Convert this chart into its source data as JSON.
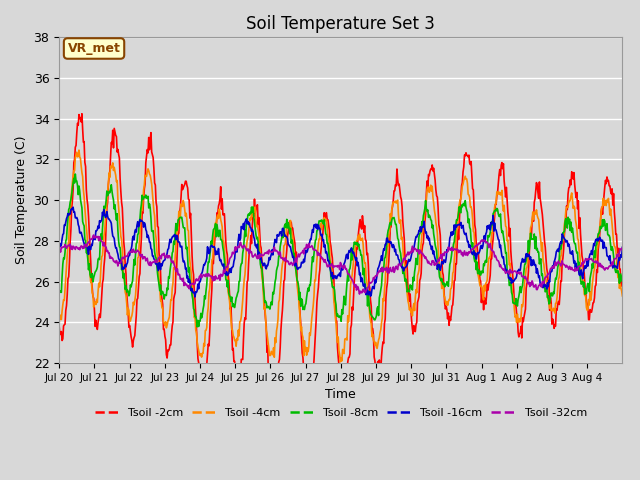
{
  "title": "Soil Temperature Set 3",
  "xlabel": "Time",
  "ylabel": "Soil Temperature (C)",
  "ylim": [
    22,
    38
  ],
  "yticks": [
    22,
    24,
    26,
    28,
    30,
    32,
    34,
    36,
    38
  ],
  "background_color": "#d8d8d8",
  "plot_bg_color": "#d8d8d8",
  "grid_color": "#ffffff",
  "annotation_text": "VR_met",
  "annotation_fg": "#884400",
  "annotation_bg": "#ffffcc",
  "annotation_edge": "#884400",
  "series": [
    {
      "label": "Tsoil -2cm",
      "color": "#ff0000"
    },
    {
      "label": "Tsoil -4cm",
      "color": "#ff8800"
    },
    {
      "label": "Tsoil -8cm",
      "color": "#00bb00"
    },
    {
      "label": "Tsoil -16cm",
      "color": "#0000cc"
    },
    {
      "label": "Tsoil -32cm",
      "color": "#aa00aa"
    }
  ],
  "x_tick_labels": [
    "Jul 20",
    "Jul 21",
    "Jul 22",
    "Jul 23",
    "Jul 24",
    "Jul 25",
    "Jul 26",
    "Jul 27",
    "Jul 28",
    "Jul 29",
    "Jul 30",
    "Jul 31",
    "Aug 1",
    "Aug 2",
    "Aug 3",
    "Aug 4"
  ],
  "n_days": 16
}
